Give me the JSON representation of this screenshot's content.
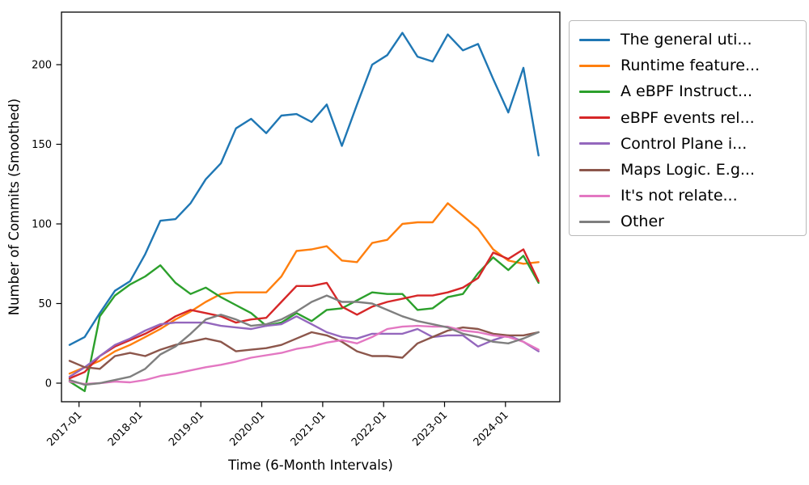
{
  "chart_data": {
    "type": "line",
    "title": "",
    "xlabel": "Time (6-Month Intervals)",
    "ylabel": "Number of Commits (Smoothed)",
    "grid": false,
    "legend_position": "outside-upper-right",
    "y_ticks": [
      0,
      50,
      100,
      150,
      200
    ],
    "ylim": [
      -12,
      233
    ],
    "x_tick_labels": [
      "2017-01",
      "2018-01",
      "2019-01",
      "2020-01",
      "2021-01",
      "2022-01",
      "2023-01",
      "2024-01"
    ],
    "x_start_est": "2016-11",
    "x_step_months": 3,
    "series": [
      {
        "name": "The general uti...",
        "color": "#1f77b4",
        "values": [
          24,
          29,
          44,
          58,
          64,
          81,
          102,
          103,
          113,
          128,
          138,
          160,
          166,
          157,
          168,
          169,
          164,
          175,
          149,
          175,
          200,
          206,
          220,
          205,
          202,
          219,
          209,
          213,
          191,
          170,
          198,
          143
        ]
      },
      {
        "name": "Runtime feature...",
        "color": "#ff7f0e",
        "values": [
          6,
          10,
          14,
          20,
          24,
          29,
          34,
          40,
          45,
          51,
          56,
          57,
          57,
          57,
          67,
          83,
          84,
          86,
          77,
          76,
          88,
          90,
          100,
          101,
          101,
          113,
          105,
          97,
          84,
          77,
          75,
          76
        ]
      },
      {
        "name": "A eBPF Instruct...",
        "color": "#2ca02c",
        "values": [
          1,
          -5,
          42,
          55,
          62,
          67,
          74,
          63,
          56,
          60,
          54,
          49,
          44,
          36,
          38,
          44,
          39,
          46,
          47,
          52,
          57,
          56,
          56,
          46,
          47,
          54,
          56,
          69,
          79,
          71,
          80,
          63
        ]
      },
      {
        "name": "eBPF events rel...",
        "color": "#d62728",
        "values": [
          3,
          7,
          17,
          23,
          27,
          31,
          36,
          42,
          46,
          44,
          42,
          38,
          40,
          41,
          51,
          61,
          61,
          63,
          48,
          43,
          48,
          51,
          53,
          55,
          55,
          57,
          60,
          66,
          82,
          78,
          84,
          64
        ]
      },
      {
        "name": "Control Plane i...",
        "color": "#9467bd",
        "values": [
          4,
          10,
          17,
          24,
          28,
          33,
          37,
          38,
          38,
          38,
          36,
          35,
          34,
          36,
          37,
          42,
          37,
          32,
          29,
          28,
          31,
          31,
          31,
          34,
          29,
          30,
          30,
          23,
          27,
          30,
          26,
          20
        ]
      },
      {
        "name": "Maps Logic. E.g...",
        "color": "#8c564b",
        "values": [
          14,
          10,
          9,
          17,
          19,
          17,
          21,
          24,
          26,
          28,
          26,
          20,
          21,
          22,
          24,
          28,
          32,
          30,
          26,
          20,
          17,
          17,
          16,
          25,
          29,
          33,
          35,
          34,
          31,
          30,
          30,
          32
        ]
      },
      {
        "name": "It's not relate...",
        "color": "#e377c2",
        "values": [
          1,
          -0.5,
          0,
          1,
          0.5,
          2,
          4.5,
          6,
          8,
          10,
          11.5,
          13.5,
          16,
          17.5,
          19,
          21.5,
          23,
          25.5,
          27,
          25,
          29,
          34,
          35.5,
          36,
          35.5,
          35.5,
          33,
          32,
          30,
          29,
          26,
          21
        ]
      },
      {
        "name": "Other",
        "color": "#7f7f7f",
        "values": [
          2,
          -1,
          0,
          2,
          4,
          9,
          18,
          23,
          31,
          40,
          43,
          40,
          36,
          37,
          40,
          45,
          51,
          55,
          51,
          51,
          50,
          46,
          42,
          39,
          37,
          35,
          31,
          29,
          26,
          25,
          28,
          32
        ]
      }
    ]
  }
}
